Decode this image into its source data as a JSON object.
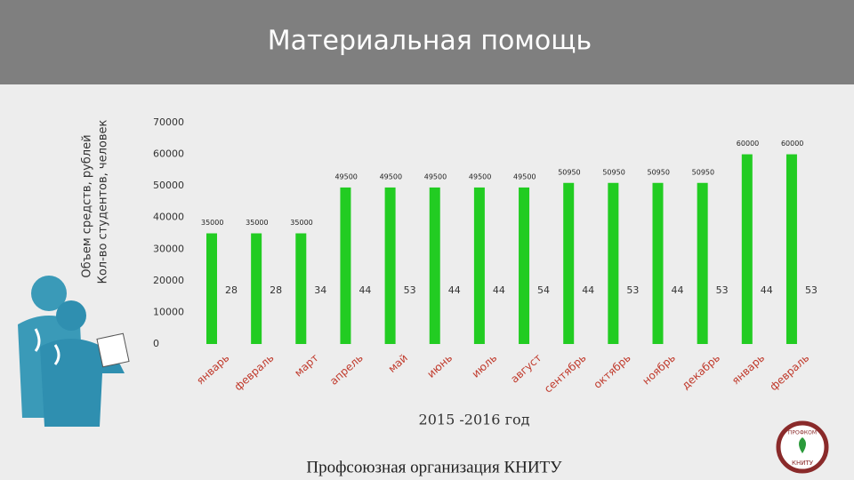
{
  "chart_data": {
    "type": "bar",
    "title": "Материальная помощь",
    "x_label": "2015 -2016 год",
    "footer": "Профсоюзная организация КНИТУ",
    "logo": [
      "ПРОФКОМ",
      "КНИТУ"
    ],
    "categories": [
      "январь",
      "февраль",
      "март",
      "апрель",
      "май",
      "июнь",
      "июль",
      "август",
      "сентябрь",
      "октябрь",
      "ноябрь",
      "декабрь",
      "январь",
      "февраль"
    ],
    "series": [
      {
        "name": "Объем средств, рублей",
        "color": "#22cc22",
        "values": [
          35000,
          35000,
          35000,
          49500,
          49500,
          49500,
          49500,
          49500,
          50950,
          50950,
          50950,
          50950,
          60000,
          60000
        ]
      },
      {
        "name": "Кол-во студентов, человек",
        "color": "#333333",
        "values": [
          28,
          28,
          34,
          44,
          53,
          44,
          44,
          54,
          44,
          53,
          44,
          53,
          44,
          53
        ]
      }
    ],
    "ylim": [
      0,
      70000
    ],
    "yticks": [
      0,
      10000,
      20000,
      30000,
      40000,
      50000,
      60000,
      70000
    ],
    "grid": false
  }
}
